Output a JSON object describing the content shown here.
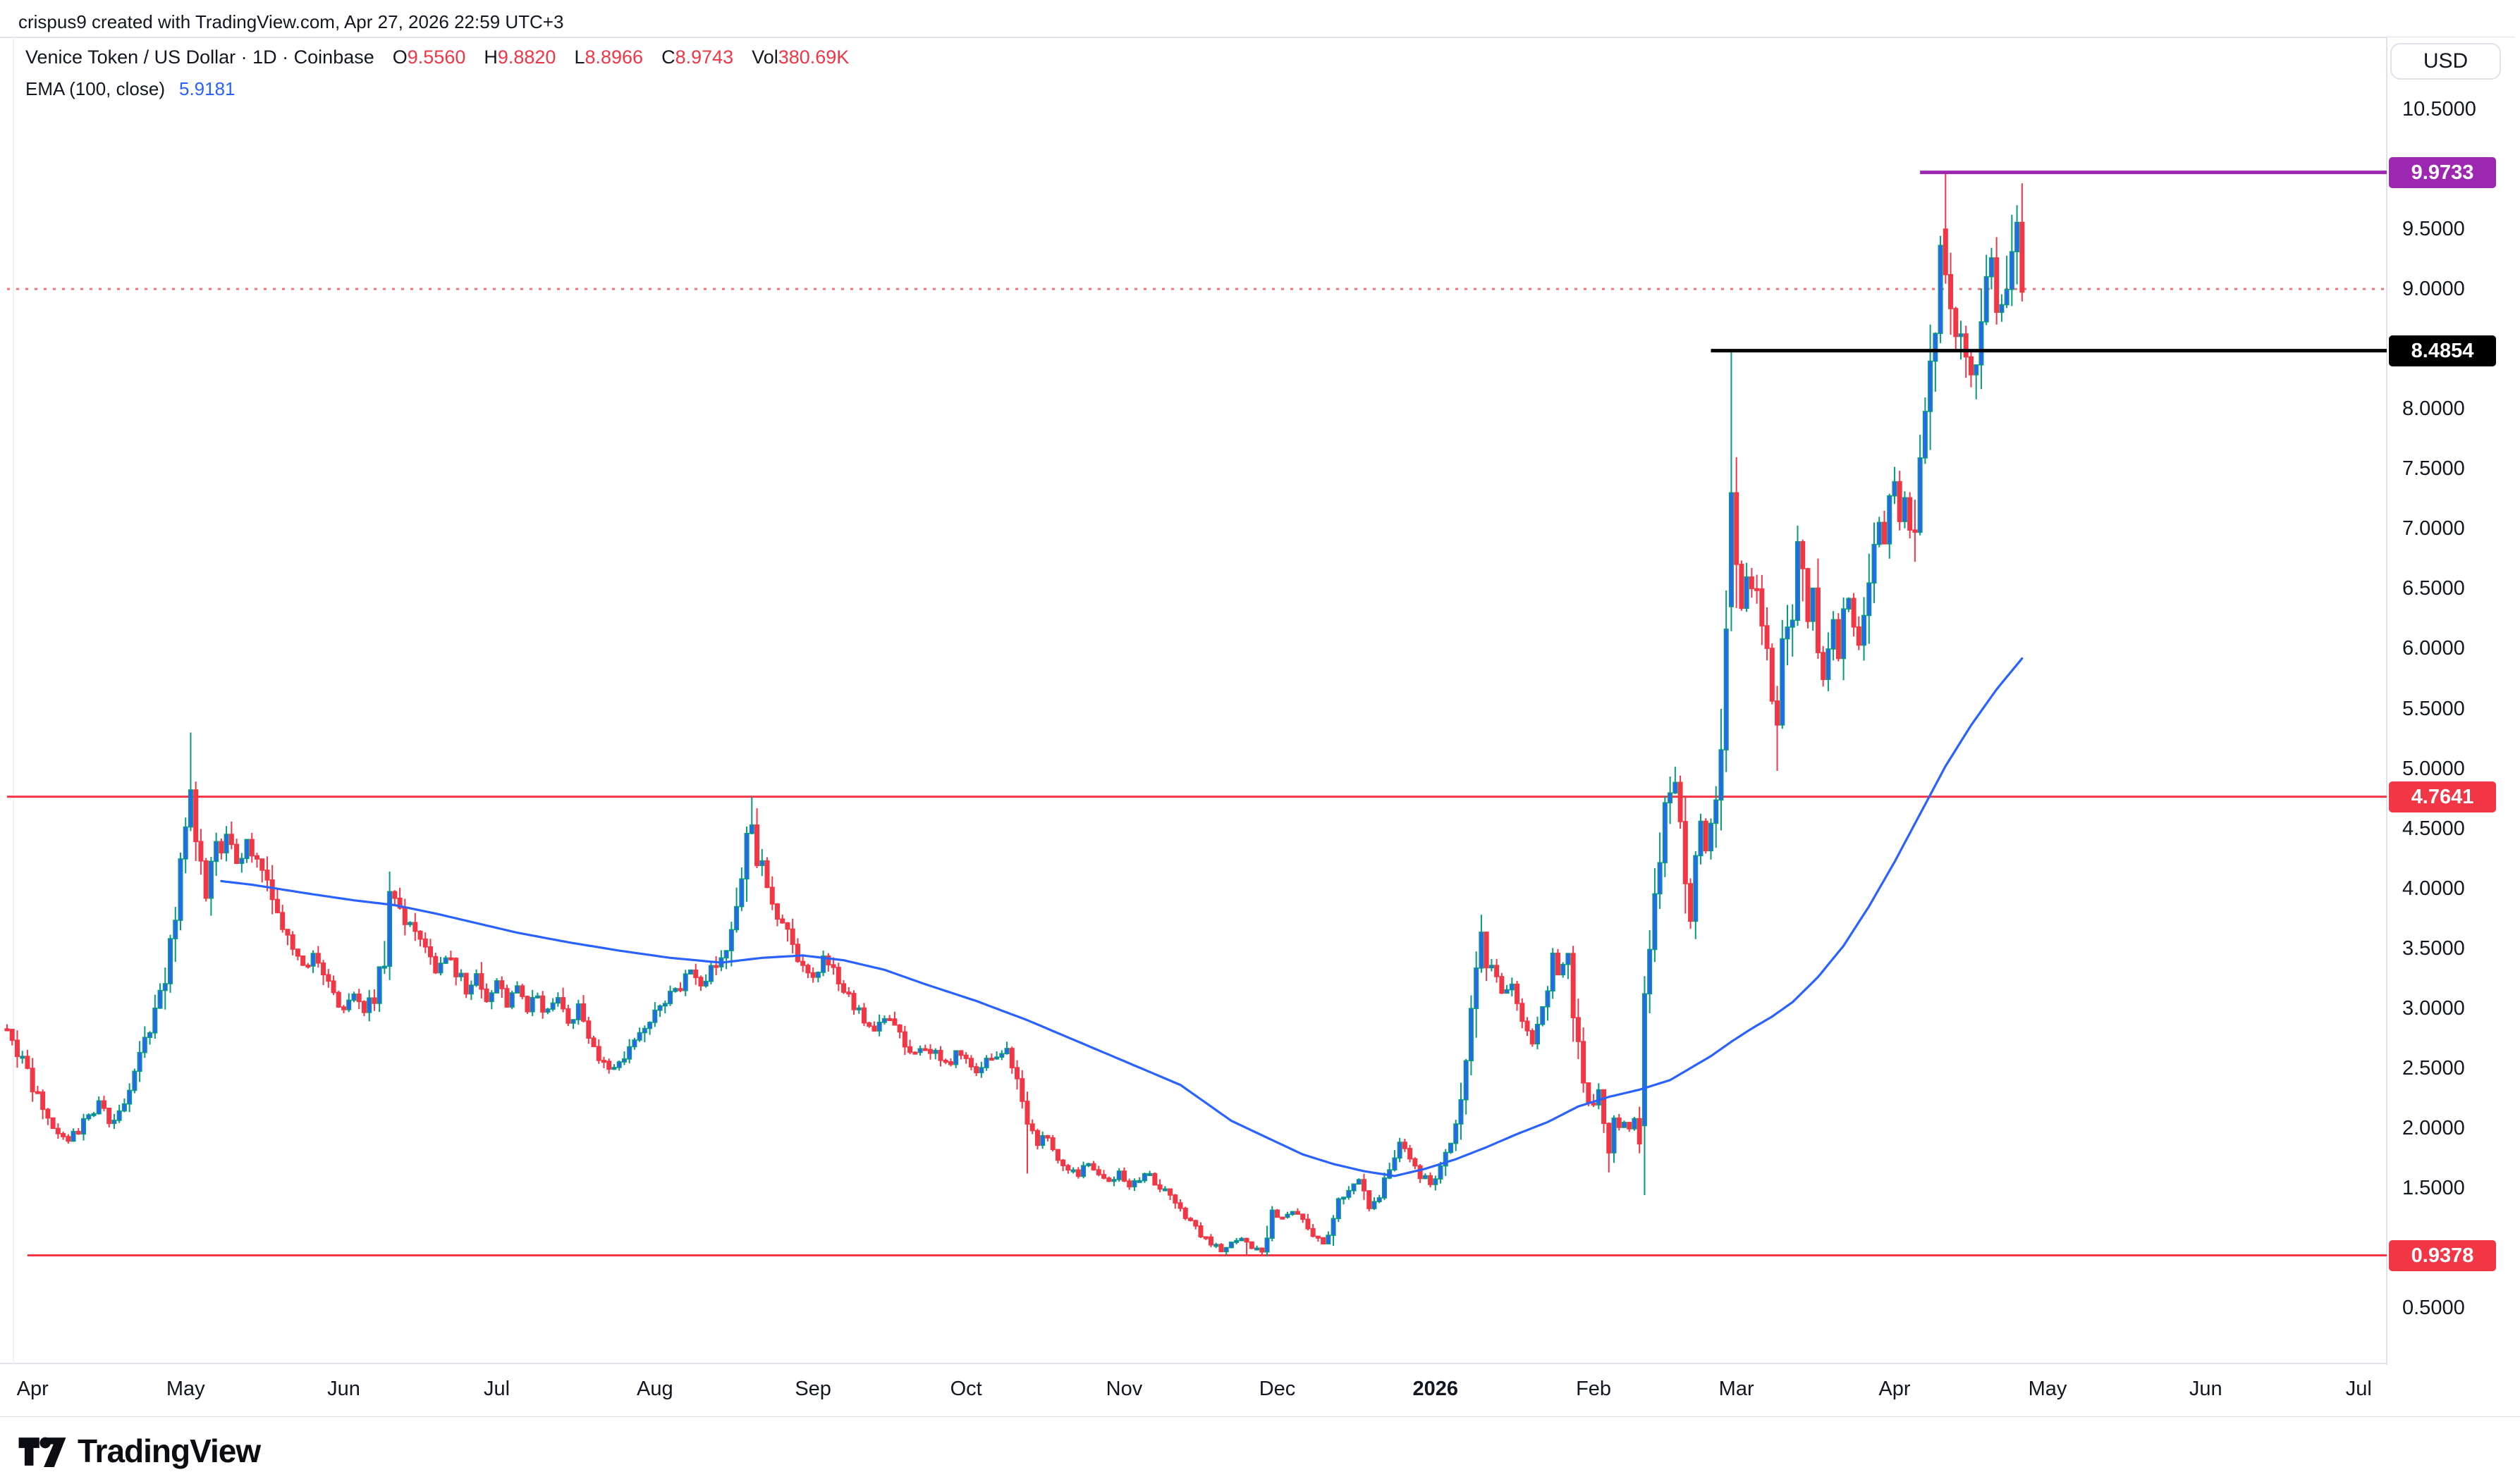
{
  "header": {
    "attribution": "crispus9 created with TradingView.com, Apr 27, 2026 22:59 UTC+3"
  },
  "legend": {
    "title": "Venice Token / US Dollar · 1D · Coinbase",
    "ohlc": [
      {
        "label": "O",
        "value": "9.5560"
      },
      {
        "label": "H",
        "value": "9.8820"
      },
      {
        "label": "L",
        "value": "8.8966"
      },
      {
        "label": "C",
        "value": "8.9743"
      },
      {
        "label": "Vol",
        "value": "380.69K"
      }
    ],
    "indicator": {
      "name": "EMA (100, close)",
      "value": "5.9181"
    }
  },
  "price_axis": {
    "currency_button": "USD"
  },
  "footer": {
    "brand": "TradingView"
  },
  "chart_data": {
    "type": "candlestick",
    "title": "Venice Token / US Dollar",
    "interval": "1D",
    "exchange": "Coinbase",
    "last_bar": {
      "open": 9.556,
      "high": 9.882,
      "low": 8.8966,
      "close": 8.9743,
      "volume": "380.69K",
      "date": "Apr 27, 2026"
    },
    "ylim": [
      0.5,
      10.5
    ],
    "grid": false,
    "bars": 396,
    "y_ticks": [
      {
        "text": "10.5000",
        "value": 10.5
      },
      {
        "text": "9.5000",
        "value": 9.5
      },
      {
        "text": "9.0000",
        "value": 9.0
      },
      {
        "text": "8.0000",
        "value": 8.0
      },
      {
        "text": "7.5000",
        "value": 7.5
      },
      {
        "text": "7.0000",
        "value": 7.0
      },
      {
        "text": "6.5000",
        "value": 6.5
      },
      {
        "text": "6.0000",
        "value": 6.0
      },
      {
        "text": "5.5000",
        "value": 5.5
      },
      {
        "text": "5.0000",
        "value": 5.0
      },
      {
        "text": "4.5000",
        "value": 4.5
      },
      {
        "text": "4.0000",
        "value": 4.0
      },
      {
        "text": "3.5000",
        "value": 3.5
      },
      {
        "text": "3.0000",
        "value": 3.0
      },
      {
        "text": "2.5000",
        "value": 2.5
      },
      {
        "text": "2.0000",
        "value": 2.0
      },
      {
        "text": "1.5000",
        "value": 1.5
      },
      {
        "text": "0.5000",
        "value": 0.5
      }
    ],
    "x_months": [
      {
        "text": "Apr",
        "day": 5
      },
      {
        "text": "May",
        "day": 35
      },
      {
        "text": "Jun",
        "day": 66
      },
      {
        "text": "Jul",
        "day": 96
      },
      {
        "text": "Aug",
        "day": 127
      },
      {
        "text": "Sep",
        "day": 158
      },
      {
        "text": "Oct",
        "day": 188
      },
      {
        "text": "Nov",
        "day": 219
      },
      {
        "text": "Dec",
        "day": 249
      },
      {
        "text": "2026",
        "day": 280,
        "bold": true
      },
      {
        "text": "Feb",
        "day": 311
      },
      {
        "text": "Mar",
        "day": 339
      },
      {
        "text": "Apr",
        "day": 370
      },
      {
        "text": "May",
        "day": 400
      },
      {
        "text": "Jun",
        "day": 431
      },
      {
        "text": "Jul",
        "day": 461
      }
    ],
    "levels": [
      {
        "value": 9.9733,
        "label": "9.9733",
        "color": "#9c27b0",
        "from_day": 375,
        "style": "solid",
        "thickness": 5,
        "chip": true,
        "layer": "over"
      },
      {
        "value": 8.4854,
        "label": "8.4854",
        "color": "#000000",
        "from_day": 334,
        "style": "solid",
        "thickness": 5,
        "chip": true,
        "layer": "over"
      },
      {
        "value": 4.7641,
        "label": "4.7641",
        "color": "#f23645",
        "from_day": 0,
        "style": "solid",
        "thickness": 3,
        "chip": true,
        "layer": "under"
      },
      {
        "value": 0.9378,
        "label": "0.9378",
        "color": "#f23645",
        "from_day": 4,
        "style": "solid",
        "thickness": 3,
        "chip": true,
        "layer": "under"
      },
      {
        "value": 9.0,
        "label": null,
        "color": "#f23645",
        "from_day": 0,
        "style": "dotted",
        "thickness": 3,
        "chip": false,
        "opacity": 0.7,
        "layer": "under"
      }
    ],
    "ema": {
      "label": "EMA (100, close)",
      "period": 100,
      "source": "close",
      "last_value": 5.9181,
      "color": "#2962ff",
      "keyframes": [
        [
          42,
          4.06
        ],
        [
          48,
          4.03
        ],
        [
          54,
          3.99
        ],
        [
          60,
          3.95
        ],
        [
          68,
          3.9
        ],
        [
          76,
          3.86
        ],
        [
          84,
          3.79
        ],
        [
          92,
          3.71
        ],
        [
          100,
          3.63
        ],
        [
          110,
          3.55
        ],
        [
          120,
          3.48
        ],
        [
          130,
          3.42
        ],
        [
          140,
          3.38
        ],
        [
          148,
          3.42
        ],
        [
          156,
          3.44
        ],
        [
          164,
          3.4
        ],
        [
          172,
          3.32
        ],
        [
          180,
          3.2
        ],
        [
          190,
          3.06
        ],
        [
          200,
          2.9
        ],
        [
          210,
          2.72
        ],
        [
          220,
          2.54
        ],
        [
          230,
          2.36
        ],
        [
          240,
          2.06
        ],
        [
          248,
          1.9
        ],
        [
          254,
          1.78
        ],
        [
          260,
          1.7
        ],
        [
          266,
          1.64
        ],
        [
          272,
          1.6
        ],
        [
          278,
          1.66
        ],
        [
          284,
          1.74
        ],
        [
          290,
          1.84
        ],
        [
          296,
          1.95
        ],
        [
          302,
          2.05
        ],
        [
          308,
          2.18
        ],
        [
          314,
          2.26
        ],
        [
          320,
          2.32
        ],
        [
          326,
          2.4
        ],
        [
          330,
          2.5
        ],
        [
          334,
          2.6
        ],
        [
          338,
          2.72
        ],
        [
          342,
          2.83
        ],
        [
          346,
          2.93
        ],
        [
          350,
          3.05
        ],
        [
          355,
          3.26
        ],
        [
          360,
          3.52
        ],
        [
          365,
          3.85
        ],
        [
          370,
          4.22
        ],
        [
          375,
          4.62
        ],
        [
          380,
          5.02
        ],
        [
          385,
          5.36
        ],
        [
          390,
          5.66
        ],
        [
          395,
          5.9181
        ]
      ]
    },
    "close_anchors": [
      [
        0,
        2.85
      ],
      [
        2,
        2.65
      ],
      [
        4,
        2.45
      ],
      [
        6,
        2.25
      ],
      [
        8,
        2.05
      ],
      [
        10,
        1.95
      ],
      [
        12,
        1.88
      ],
      [
        14,
        1.98
      ],
      [
        16,
        2.12
      ],
      [
        18,
        2.2
      ],
      [
        20,
        2.05
      ],
      [
        22,
        2.15
      ],
      [
        24,
        2.35
      ],
      [
        26,
        2.6
      ],
      [
        28,
        2.85
      ],
      [
        30,
        3.1
      ],
      [
        32,
        3.5
      ],
      [
        34,
        4.1
      ],
      [
        35,
        4.5
      ],
      [
        36,
        4.9
      ],
      [
        37,
        4.4
      ],
      [
        39,
        3.95
      ],
      [
        41,
        4.3
      ],
      [
        43,
        4.45
      ],
      [
        45,
        4.2
      ],
      [
        47,
        4.35
      ],
      [
        49,
        4.25
      ],
      [
        50,
        4.15
      ],
      [
        52,
        3.9
      ],
      [
        54,
        3.65
      ],
      [
        56,
        3.5
      ],
      [
        58,
        3.35
      ],
      [
        60,
        3.45
      ],
      [
        62,
        3.25
      ],
      [
        64,
        3.1
      ],
      [
        66,
        3.0
      ],
      [
        68,
        3.1
      ],
      [
        70,
        2.95
      ],
      [
        72,
        3.1
      ],
      [
        74,
        3.5
      ],
      [
        75,
        4.0
      ],
      [
        76,
        3.9
      ],
      [
        78,
        3.75
      ],
      [
        80,
        3.6
      ],
      [
        82,
        3.45
      ],
      [
        84,
        3.3
      ],
      [
        86,
        3.45
      ],
      [
        88,
        3.3
      ],
      [
        90,
        3.15
      ],
      [
        92,
        3.3
      ],
      [
        94,
        3.1
      ],
      [
        96,
        3.2
      ],
      [
        98,
        3.05
      ],
      [
        100,
        3.15
      ],
      [
        102,
        2.95
      ],
      [
        104,
        3.1
      ],
      [
        106,
        2.95
      ],
      [
        108,
        3.05
      ],
      [
        110,
        2.9
      ],
      [
        112,
        3.0
      ],
      [
        114,
        2.8
      ],
      [
        116,
        2.62
      ],
      [
        118,
        2.5
      ],
      [
        120,
        2.55
      ],
      [
        122,
        2.65
      ],
      [
        124,
        2.75
      ],
      [
        126,
        2.9
      ],
      [
        128,
        3.0
      ],
      [
        130,
        3.1
      ],
      [
        132,
        3.2
      ],
      [
        134,
        3.3
      ],
      [
        136,
        3.2
      ],
      [
        138,
        3.3
      ],
      [
        140,
        3.45
      ],
      [
        142,
        3.65
      ],
      [
        144,
        4.1
      ],
      [
        145,
        4.35
      ],
      [
        146,
        4.55
      ],
      [
        147,
        4.3
      ],
      [
        148,
        4.15
      ],
      [
        150,
        3.9
      ],
      [
        152,
        3.7
      ],
      [
        154,
        3.5
      ],
      [
        156,
        3.35
      ],
      [
        158,
        3.25
      ],
      [
        160,
        3.4
      ],
      [
        162,
        3.3
      ],
      [
        164,
        3.15
      ],
      [
        166,
        3.0
      ],
      [
        168,
        2.9
      ],
      [
        170,
        2.8
      ],
      [
        172,
        2.92
      ],
      [
        174,
        2.85
      ],
      [
        176,
        2.72
      ],
      [
        178,
        2.6
      ],
      [
        180,
        2.68
      ],
      [
        182,
        2.6
      ],
      [
        184,
        2.52
      ],
      [
        186,
        2.62
      ],
      [
        188,
        2.55
      ],
      [
        190,
        2.48
      ],
      [
        192,
        2.56
      ],
      [
        194,
        2.62
      ],
      [
        196,
        2.66
      ],
      [
        198,
        2.4
      ],
      [
        200,
        2.05
      ],
      [
        202,
        1.85
      ],
      [
        204,
        1.95
      ],
      [
        206,
        1.75
      ],
      [
        208,
        1.65
      ],
      [
        210,
        1.6
      ],
      [
        212,
        1.7
      ],
      [
        214,
        1.62
      ],
      [
        216,
        1.55
      ],
      [
        218,
        1.63
      ],
      [
        220,
        1.52
      ],
      [
        222,
        1.58
      ],
      [
        224,
        1.62
      ],
      [
        226,
        1.5
      ],
      [
        228,
        1.42
      ],
      [
        230,
        1.3
      ],
      [
        232,
        1.2
      ],
      [
        234,
        1.12
      ],
      [
        236,
        1.05
      ],
      [
        238,
        0.98
      ],
      [
        240,
        1.03
      ],
      [
        242,
        1.07
      ],
      [
        244,
        1.0
      ],
      [
        246,
        0.97
      ],
      [
        247,
        1.02
      ],
      [
        248,
        1.28
      ],
      [
        250,
        1.25
      ],
      [
        252,
        1.3
      ],
      [
        254,
        1.22
      ],
      [
        256,
        1.12
      ],
      [
        258,
        1.05
      ],
      [
        260,
        1.18
      ],
      [
        261,
        1.4
      ],
      [
        263,
        1.5
      ],
      [
        265,
        1.55
      ],
      [
        267,
        1.35
      ],
      [
        269,
        1.45
      ],
      [
        271,
        1.65
      ],
      [
        273,
        1.85
      ],
      [
        275,
        1.75
      ],
      [
        277,
        1.6
      ],
      [
        279,
        1.55
      ],
      [
        280,
        1.62
      ],
      [
        282,
        1.78
      ],
      [
        284,
        2.05
      ],
      [
        286,
        2.45
      ],
      [
        287,
        2.85
      ],
      [
        288,
        3.35
      ],
      [
        289,
        3.6
      ],
      [
        290,
        3.4
      ],
      [
        291,
        3.35
      ],
      [
        292,
        3.25
      ],
      [
        293,
        3.1
      ],
      [
        295,
        3.15
      ],
      [
        297,
        2.95
      ],
      [
        299,
        2.7
      ],
      [
        300,
        2.8
      ],
      [
        301,
        2.95
      ],
      [
        302,
        3.1
      ],
      [
        303,
        3.45
      ],
      [
        304,
        3.3
      ],
      [
        305,
        3.4
      ],
      [
        306,
        3.35
      ],
      [
        307,
        2.95
      ],
      [
        308,
        2.7
      ],
      [
        309,
        2.5
      ],
      [
        310,
        2.15
      ],
      [
        311,
        2.25
      ],
      [
        312,
        2.35
      ],
      [
        313,
        2.1
      ],
      [
        314,
        1.8
      ],
      [
        315,
        2.1
      ],
      [
        316,
        2.0
      ],
      [
        317,
        2.05
      ],
      [
        318,
        1.98
      ],
      [
        319,
        2.05
      ],
      [
        320,
        2.0
      ],
      [
        321,
        3.1
      ],
      [
        322,
        3.45
      ],
      [
        323,
        3.8
      ],
      [
        324,
        4.2
      ],
      [
        325,
        4.55
      ],
      [
        326,
        4.8
      ],
      [
        327,
        4.95
      ],
      [
        328,
        4.5
      ],
      [
        329,
        4.05
      ],
      [
        330,
        3.75
      ],
      [
        331,
        4.15
      ],
      [
        332,
        4.5
      ],
      [
        333,
        4.25
      ],
      [
        334,
        4.55
      ],
      [
        335,
        4.9
      ],
      [
        336,
        5.4
      ],
      [
        337,
        6.3
      ],
      [
        338,
        7.3
      ],
      [
        339,
        6.7
      ],
      [
        340,
        6.35
      ],
      [
        342,
        6.6
      ],
      [
        344,
        6.15
      ],
      [
        346,
        5.65
      ],
      [
        347,
        5.45
      ],
      [
        348,
        5.9
      ],
      [
        350,
        6.4
      ],
      [
        351,
        6.85
      ],
      [
        352,
        6.55
      ],
      [
        353,
        6.2
      ],
      [
        354,
        6.45
      ],
      [
        355,
        6.1
      ],
      [
        356,
        5.75
      ],
      [
        357,
        6.0
      ],
      [
        358,
        6.2
      ],
      [
        359,
        5.95
      ],
      [
        360,
        6.2
      ],
      [
        361,
        6.45
      ],
      [
        362,
        6.2
      ],
      [
        363,
        6.0
      ],
      [
        364,
        6.3
      ],
      [
        365,
        6.6
      ],
      [
        366,
        6.9
      ],
      [
        367,
        7.1
      ],
      [
        368,
        6.85
      ],
      [
        369,
        7.15
      ],
      [
        370,
        7.3
      ],
      [
        371,
        7.0
      ],
      [
        372,
        7.2
      ],
      [
        373,
        6.9
      ],
      [
        374,
        7.15
      ],
      [
        375,
        7.5
      ],
      [
        376,
        7.85
      ],
      [
        377,
        8.3
      ],
      [
        378,
        8.75
      ],
      [
        379,
        9.45
      ],
      [
        380,
        9.12
      ],
      [
        381,
        8.95
      ],
      [
        382,
        8.75
      ],
      [
        383,
        8.6
      ],
      [
        384,
        8.4
      ],
      [
        385,
        8.3
      ],
      [
        386,
        8.55
      ],
      [
        387,
        8.85
      ],
      [
        388,
        9.1
      ],
      [
        389,
        9.3
      ],
      [
        390,
        9.0
      ],
      [
        391,
        8.85
      ],
      [
        392,
        9.15
      ],
      [
        393,
        9.5
      ],
      [
        394,
        9.556
      ],
      [
        395,
        8.9743
      ]
    ],
    "specials": {
      "36": {
        "h": 5.3
      },
      "146": {
        "h": 4.7641
      },
      "200": {
        "l": 1.62
      },
      "239": {
        "l": 0.9378
      },
      "243": {
        "l": 0.94
      },
      "246": {
        "l": 0.938
      },
      "289": {
        "h": 3.78
      },
      "314": {
        "l": 1.63
      },
      "321": {
        "o": 2.02,
        "c": 3.12
      },
      "338": {
        "o": 6.35,
        "c": 7.3,
        "h": 8.4854
      },
      "347": {
        "l": 4.98
      },
      "380": {
        "o": 9.5,
        "c": 9.12,
        "h": 9.9733
      },
      "385": {
        "l": 8.18
      },
      "393": {
        "h": 9.62
      },
      "394": {
        "h": 9.7,
        "c": 9.556
      },
      "395": {
        "o": 9.556,
        "h": 9.882,
        "l": 8.8966,
        "c": 8.9743
      }
    },
    "colors": {
      "up_border": "#089981",
      "up_fill": "#2962ff",
      "down": "#f23645",
      "ema": "#2962ff",
      "axis_text": "#131722",
      "separator": "#e0e3eb"
    }
  }
}
